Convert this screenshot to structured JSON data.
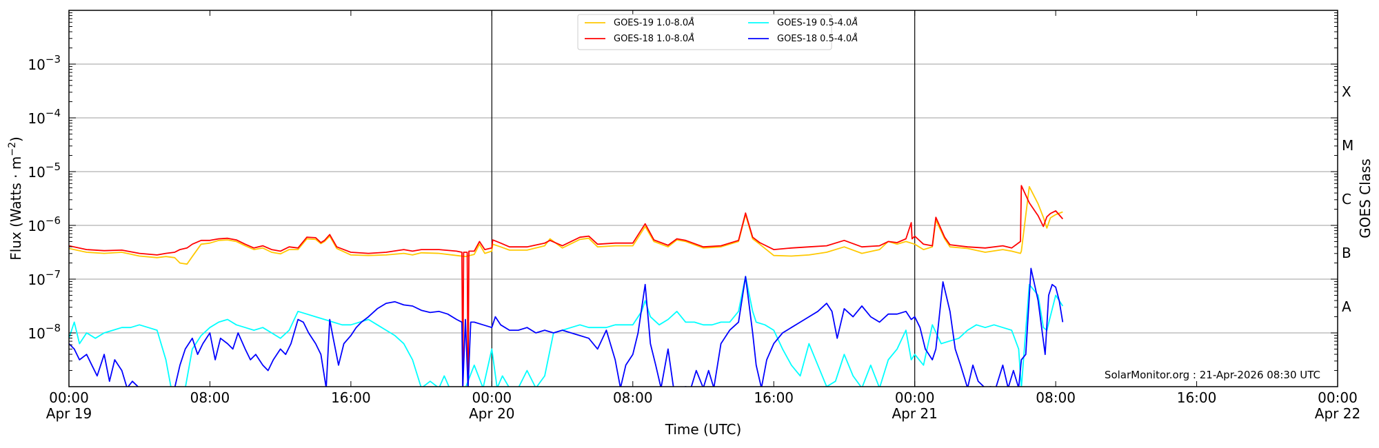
{
  "chart_data": {
    "type": "line",
    "title": "",
    "xlabel": "Time (UTC)",
    "ylabel": "Flux (Watts · m⁻²)",
    "ylabel_right": "GOES Class",
    "yscale": "log",
    "ylim": [
      1e-09,
      0.01
    ],
    "xlim_hours": [
      0,
      72
    ],
    "x_origin": "Apr 19 00:00 UTC",
    "grid": "horizontal major (decades)",
    "legend_position": "upper center",
    "y_ticks": [
      {
        "exp": -3,
        "label": "10",
        "sup": "−3"
      },
      {
        "exp": -4,
        "label": "10",
        "sup": "−4"
      },
      {
        "exp": -5,
        "label": "10",
        "sup": "−5"
      },
      {
        "exp": -6,
        "label": "10",
        "sup": "−6"
      },
      {
        "exp": -7,
        "label": "10",
        "sup": "−7"
      },
      {
        "exp": -8,
        "label": "10",
        "sup": "−8"
      }
    ],
    "x_ticks": [
      {
        "hour": 0,
        "time": "00:00",
        "date": "Apr 19"
      },
      {
        "hour": 8,
        "time": "08:00",
        "date": ""
      },
      {
        "hour": 16,
        "time": "16:00",
        "date": ""
      },
      {
        "hour": 24,
        "time": "00:00",
        "date": "Apr 20"
      },
      {
        "hour": 32,
        "time": "08:00",
        "date": ""
      },
      {
        "hour": 40,
        "time": "16:00",
        "date": ""
      },
      {
        "hour": 48,
        "time": "00:00",
        "date": "Apr 21"
      },
      {
        "hour": 56,
        "time": "08:00",
        "date": ""
      },
      {
        "hour": 64,
        "time": "16:00",
        "date": ""
      },
      {
        "hour": 72,
        "time": "00:00",
        "date": "Apr 22"
      }
    ],
    "day_separators_hours": [
      24,
      48
    ],
    "goes_classes": [
      {
        "label": "X",
        "log": -3.5
      },
      {
        "label": "M",
        "log": -4.5
      },
      {
        "label": "C",
        "log": -5.5
      },
      {
        "label": "B",
        "log": -6.5
      },
      {
        "label": "A",
        "log": -7.5
      }
    ],
    "series": [
      {
        "name": "GOES-19 1.0-8.0Å",
        "color": "#ffc800",
        "x_hours": [
          0,
          1,
          2,
          3,
          4,
          5,
          5.5,
          6,
          6.3,
          6.7,
          7,
          7.5,
          8,
          8.5,
          9,
          9.5,
          10,
          10.5,
          11,
          11.5,
          12,
          12.5,
          13,
          13.5,
          14,
          14.3,
          14.5,
          14.8,
          15.2,
          16,
          17,
          18,
          19,
          19.5,
          20,
          21,
          22,
          22.5,
          23,
          23.3,
          23.6,
          24,
          24.05,
          24.5,
          25,
          26,
          27,
          27.3,
          28,
          29,
          29.5,
          30,
          31,
          32,
          32.7,
          33.2,
          34,
          34.5,
          35,
          36,
          37,
          38,
          38.4,
          38.8,
          39.2,
          40,
          41,
          42,
          43,
          44,
          45,
          46,
          46.5,
          47,
          47.5,
          48,
          48.5,
          49,
          49.2,
          49.7,
          50,
          51,
          52,
          53,
          53.5,
          54,
          54.05,
          54.5,
          55,
          55.3,
          55.5,
          55.7,
          56,
          56.4
        ],
        "log_values": [
          -6.43,
          -6.5,
          -6.52,
          -6.5,
          -6.57,
          -6.6,
          -6.58,
          -6.6,
          -6.7,
          -6.72,
          -6.58,
          -6.35,
          -6.33,
          -6.28,
          -6.27,
          -6.3,
          -6.38,
          -6.45,
          -6.42,
          -6.5,
          -6.53,
          -6.45,
          -6.45,
          -6.25,
          -6.26,
          -6.34,
          -6.3,
          -6.2,
          -6.43,
          -6.55,
          -6.56,
          -6.55,
          -6.52,
          -6.55,
          -6.51,
          -6.52,
          -6.56,
          -6.58,
          -6.54,
          -6.35,
          -6.52,
          -6.48,
          -6.35,
          -6.4,
          -6.46,
          -6.46,
          -6.38,
          -6.25,
          -6.42,
          -6.26,
          -6.24,
          -6.4,
          -6.38,
          -6.38,
          -6.02,
          -6.3,
          -6.4,
          -6.27,
          -6.3,
          -6.42,
          -6.4,
          -6.3,
          -5.8,
          -6.25,
          -6.35,
          -6.56,
          -6.57,
          -6.55,
          -6.5,
          -6.4,
          -6.52,
          -6.45,
          -6.3,
          -6.35,
          -6.3,
          -6.35,
          -6.45,
          -6.4,
          -5.9,
          -6.25,
          -6.4,
          -6.43,
          -6.5,
          -6.45,
          -6.48,
          -6.52,
          -6.48,
          -5.28,
          -5.6,
          -5.85,
          -6.05,
          -5.86,
          -5.8,
          -5.75,
          -5.9,
          -6.03
        ]
      },
      {
        "name": "GOES-18 1.0-8.0Å",
        "color": "#ff0000",
        "x_hours": [
          0,
          1,
          2,
          3,
          4,
          5,
          5.5,
          6,
          6.3,
          6.7,
          7,
          7.5,
          8,
          8.5,
          9,
          9.5,
          10,
          10.5,
          11,
          11.5,
          12,
          12.5,
          13,
          13.5,
          14,
          14.3,
          14.5,
          14.8,
          15.2,
          16,
          17,
          18,
          19,
          19.5,
          20,
          21,
          22,
          22.3,
          22.35,
          22.4,
          22.6,
          22.65,
          22.7,
          23,
          23.3,
          23.6,
          24,
          24.05,
          24.5,
          25,
          26,
          27,
          27.3,
          28,
          29,
          29.5,
          30,
          31,
          32,
          32.7,
          33.2,
          34,
          34.5,
          35,
          36,
          37,
          38,
          38.4,
          38.8,
          39.2,
          40,
          41,
          42,
          43,
          44,
          45,
          46,
          46.5,
          47,
          47.5,
          47.8,
          47.85,
          48,
          48.5,
          49,
          49.2,
          49.7,
          50,
          51,
          52,
          53,
          53.5,
          54,
          54.05,
          54.5,
          55,
          55.3,
          55.5,
          55.7,
          56,
          56.4
        ],
        "log_values": [
          -6.38,
          -6.45,
          -6.47,
          -6.46,
          -6.52,
          -6.55,
          -6.52,
          -6.5,
          -6.45,
          -6.42,
          -6.35,
          -6.28,
          -6.28,
          -6.25,
          -6.24,
          -6.27,
          -6.35,
          -6.42,
          -6.38,
          -6.45,
          -6.48,
          -6.4,
          -6.42,
          -6.22,
          -6.23,
          -6.32,
          -6.28,
          -6.17,
          -6.4,
          -6.5,
          -6.52,
          -6.5,
          -6.45,
          -6.48,
          -6.45,
          -6.45,
          -6.48,
          -6.5,
          -9.5,
          -6.5,
          -6.5,
          -9.5,
          -6.48,
          -6.48,
          -6.3,
          -6.45,
          -6.42,
          -6.27,
          -6.33,
          -6.4,
          -6.4,
          -6.33,
          -6.28,
          -6.38,
          -6.22,
          -6.2,
          -6.35,
          -6.33,
          -6.33,
          -5.97,
          -6.27,
          -6.37,
          -6.25,
          -6.28,
          -6.4,
          -6.38,
          -6.28,
          -5.77,
          -6.22,
          -6.32,
          -6.45,
          -6.42,
          -6.4,
          -6.38,
          -6.28,
          -6.4,
          -6.38,
          -6.3,
          -6.32,
          -6.25,
          -5.95,
          -6.25,
          -6.2,
          -6.35,
          -6.38,
          -5.85,
          -6.22,
          -6.36,
          -6.4,
          -6.42,
          -6.38,
          -6.42,
          -6.3,
          -5.26,
          -5.58,
          -5.82,
          -6.02,
          -5.84,
          -5.78,
          -5.73,
          -5.88,
          -6.04
        ]
      },
      {
        "name": "GOES-19 0.5-4.0Å",
        "color": "#00ffff",
        "x_hours": [
          0,
          0.3,
          0.6,
          1,
          1.5,
          2,
          2.5,
          3,
          3.5,
          4,
          4.5,
          5,
          5.5,
          5.8,
          6,
          6.3,
          6.6,
          7,
          7.5,
          8,
          8.5,
          9,
          9.5,
          10,
          10.5,
          11,
          11.5,
          12,
          12.5,
          13,
          13.5,
          14,
          14.5,
          15,
          15.5,
          16,
          16.5,
          17,
          17.5,
          18,
          18.5,
          19,
          19.5,
          20,
          20.5,
          21,
          21.3,
          21.6,
          22,
          22.5,
          23,
          23.5,
          24,
          24.3,
          24.6,
          25,
          25.5,
          26,
          26.5,
          27,
          27.5,
          28,
          28.5,
          29,
          29.5,
          30,
          30.5,
          31,
          31.5,
          32,
          32.5,
          32.7,
          33,
          33.5,
          34,
          34.5,
          35,
          35.5,
          36,
          36.5,
          37,
          37.5,
          38,
          38.4,
          38.8,
          39,
          39.5,
          40,
          40.5,
          41,
          41.5,
          42,
          42.5,
          43,
          43.5,
          44,
          44.5,
          45,
          45.5,
          46,
          46.5,
          47,
          47.5,
          47.8,
          48,
          48.5,
          49,
          49.5,
          50,
          50.5,
          51,
          51.5,
          52,
          52.5,
          53,
          53.5,
          53.9,
          54.05,
          54.5,
          55,
          55.3,
          55.5,
          56,
          56.4
        ],
        "log_values": [
          -8.1,
          -7.8,
          -8.2,
          -8.0,
          -8.1,
          -8.0,
          -7.95,
          -7.9,
          -7.9,
          -7.85,
          -7.9,
          -7.95,
          -8.5,
          -9.5,
          -9.5,
          -9.5,
          -9.5,
          -8.3,
          -8.05,
          -7.9,
          -7.8,
          -7.75,
          -7.85,
          -7.9,
          -7.95,
          -7.9,
          -8.0,
          -8.1,
          -7.95,
          -7.6,
          -7.65,
          -7.7,
          -7.75,
          -7.8,
          -7.85,
          -7.85,
          -7.8,
          -7.75,
          -7.85,
          -7.95,
          -8.05,
          -8.2,
          -8.5,
          -9.5,
          -8.9,
          -9.5,
          -8.8,
          -9.5,
          -9.5,
          -9.5,
          -8.6,
          -9.2,
          -8.3,
          -9.5,
          -8.8,
          -9.5,
          -9.5,
          -8.7,
          -9.5,
          -8.8,
          -8.0,
          -7.95,
          -7.9,
          -7.85,
          -7.9,
          -7.9,
          -7.9,
          -7.85,
          -7.85,
          -7.85,
          -7.6,
          -7.4,
          -7.7,
          -7.85,
          -7.75,
          -7.6,
          -7.8,
          -7.8,
          -7.85,
          -7.85,
          -7.8,
          -7.8,
          -7.6,
          -6.95,
          -7.6,
          -7.8,
          -7.85,
          -7.95,
          -8.3,
          -8.6,
          -8.8,
          -8.2,
          -8.6,
          -9.0,
          -8.9,
          -8.4,
          -8.8,
          -9.3,
          -8.6,
          -9.2,
          -8.5,
          -8.3,
          -7.95,
          -8.5,
          -8.4,
          -8.6,
          -7.85,
          -8.2,
          -8.15,
          -8.1,
          -7.95,
          -7.85,
          -7.9,
          -7.85,
          -7.9,
          -7.95,
          -8.3,
          -9.2,
          -7.1,
          -7.3,
          -7.9,
          -7.95,
          -7.3,
          -7.5,
          -8.0,
          -7.8
        ]
      },
      {
        "name": "GOES-18 0.5-4.0Å",
        "color": "#0000ff",
        "x_hours": [
          0,
          0.3,
          0.6,
          1,
          1.3,
          1.6,
          2,
          2.3,
          2.6,
          3,
          3.3,
          3.6,
          4,
          4.3,
          4.6,
          5,
          5.3,
          5.6,
          6,
          6.3,
          6.6,
          7,
          7.3,
          7.6,
          8,
          8.3,
          8.6,
          9,
          9.3,
          9.6,
          10,
          10.3,
          10.6,
          11,
          11.3,
          11.6,
          12,
          12.3,
          12.6,
          13,
          13.3,
          13.6,
          14,
          14.3,
          14.6,
          14.8,
          15,
          15.3,
          15.6,
          16,
          16.3,
          16.6,
          17,
          17.5,
          18,
          18.5,
          19,
          19.5,
          20,
          20.5,
          21,
          21.5,
          22,
          22.3,
          22.35,
          22.5,
          22.65,
          22.8,
          23,
          23.5,
          24,
          24.2,
          24.5,
          25,
          25.5,
          26,
          26.5,
          27,
          27.5,
          28,
          28.5,
          29,
          29.5,
          30,
          30.5,
          31,
          31.3,
          31.6,
          32,
          32.3,
          32.7,
          33,
          33.3,
          33.6,
          34,
          34.3,
          34.6,
          35,
          35.3,
          35.6,
          36,
          36.3,
          36.6,
          37,
          37.5,
          38,
          38.4,
          38.8,
          39,
          39.3,
          39.6,
          40,
          40.5,
          41,
          41.5,
          42,
          42.5,
          43,
          43.3,
          43.6,
          44,
          44.5,
          45,
          45.5,
          46,
          46.5,
          47,
          47.5,
          47.8,
          48,
          48.3,
          48.6,
          49,
          49.2,
          49.6,
          50,
          50.3,
          50.6,
          51,
          51.3,
          51.6,
          52,
          52.3,
          52.6,
          53,
          53.3,
          53.6,
          53.9,
          54.05,
          54.3,
          54.6,
          55,
          55.2,
          55.4,
          55.6,
          55.8,
          56,
          56.2,
          56.4
        ],
        "log_values": [
          -8.2,
          -8.3,
          -8.5,
          -8.4,
          -8.6,
          -8.8,
          -8.4,
          -8.9,
          -8.5,
          -8.7,
          -9.5,
          -8.9,
          -9.5,
          -9.5,
          -9.5,
          -9.5,
          -9.5,
          -9.2,
          -9.5,
          -8.6,
          -8.3,
          -8.1,
          -8.4,
          -8.2,
          -8.0,
          -8.5,
          -8.1,
          -8.2,
          -8.3,
          -8.0,
          -8.3,
          -8.5,
          -8.4,
          -8.6,
          -8.7,
          -8.5,
          -8.3,
          -8.4,
          -8.2,
          -7.75,
          -7.8,
          -8.0,
          -8.2,
          -8.4,
          -9.5,
          -7.75,
          -8.1,
          -8.6,
          -8.2,
          -8.05,
          -7.9,
          -7.8,
          -7.7,
          -7.55,
          -7.45,
          -7.42,
          -7.48,
          -7.5,
          -7.58,
          -7.62,
          -7.6,
          -7.65,
          -7.75,
          -7.8,
          -9.5,
          -7.75,
          -9.5,
          -7.8,
          -7.8,
          -7.85,
          -7.9,
          -7.7,
          -7.85,
          -7.95,
          -7.95,
          -7.9,
          -8.0,
          -7.95,
          -8.0,
          -7.95,
          -8.0,
          -8.05,
          -8.1,
          -8.3,
          -7.95,
          -8.5,
          -9.5,
          -8.6,
          -8.4,
          -8.0,
          -7.1,
          -8.2,
          -8.6,
          -9.3,
          -8.3,
          -9.0,
          -9.5,
          -9.0,
          -9.5,
          -8.7,
          -9.5,
          -8.7,
          -9.5,
          -8.2,
          -7.95,
          -7.8,
          -6.95,
          -8.0,
          -8.6,
          -9.5,
          -8.5,
          -8.2,
          -8.0,
          -7.9,
          -7.8,
          -7.7,
          -7.6,
          -7.45,
          -7.6,
          -8.1,
          -7.55,
          -7.7,
          -7.5,
          -7.7,
          -7.8,
          -7.65,
          -7.65,
          -7.6,
          -7.75,
          -7.7,
          -7.9,
          -8.3,
          -8.5,
          -8.3,
          -7.05,
          -7.6,
          -8.3,
          -8.6,
          -9.5,
          -8.6,
          -8.9,
          -9.5,
          -9.0,
          -9.5,
          -8.6,
          -9.5,
          -8.7,
          -9.2,
          -8.5,
          -8.4,
          -6.8,
          -7.4,
          -7.9,
          -8.4,
          -7.3,
          -7.1,
          -7.15,
          -7.4,
          -7.8,
          -8.2,
          -8.0
        ]
      }
    ]
  },
  "legend": {
    "items": [
      {
        "label": "GOES-19 1.0-8.0",
        "suffix": "Å",
        "color": "#ffc800"
      },
      {
        "label": "GOES-18 1.0-8.0",
        "suffix": "Å",
        "color": "#ff0000"
      },
      {
        "label": "GOES-19 0.5-4.0",
        "suffix": "Å",
        "color": "#00ffff"
      },
      {
        "label": "GOES-18 0.5-4.0",
        "suffix": "Å",
        "color": "#0000ff"
      }
    ]
  },
  "credit": "SolarMonitor.org : 21-Apr-2026 08:30 UTC",
  "axes": {
    "xlabel": "Time (UTC)",
    "ylabel_main": "Flux (Watts · m",
    "ylabel_sup": "−2",
    "ylabel_close": ")",
    "ylabel_right": "GOES Class"
  }
}
